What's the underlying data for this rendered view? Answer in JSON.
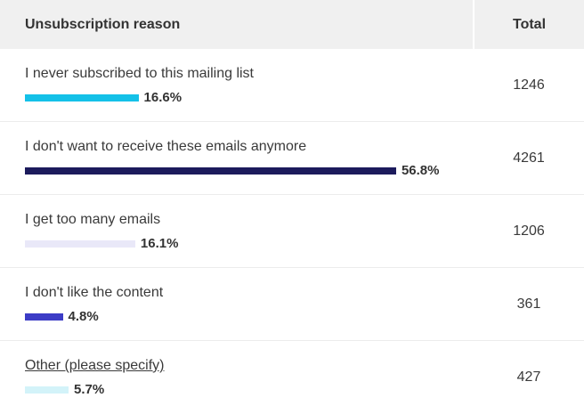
{
  "header": {
    "reason": "Unsubscription reason",
    "total": "Total"
  },
  "rows": [
    {
      "reason": "I never subscribed to this mailing list",
      "percent_label": "16.6%",
      "percent": 16.6,
      "total": "1246",
      "color": "#14c1e8",
      "link": false
    },
    {
      "reason": "I don't want to receive these emails anymore",
      "percent_label": "56.8%",
      "percent": 56.8,
      "total": "4261",
      "color": "#1c1b5c",
      "link": false
    },
    {
      "reason": "I get too many emails",
      "percent_label": "16.1%",
      "percent": 16.1,
      "total": "1206",
      "color": "#e9e8f8",
      "link": false
    },
    {
      "reason": "I don't like the content",
      "percent_label": "4.8%",
      "percent": 4.8,
      "total": "361",
      "color": "#3c3cc6",
      "link": false
    },
    {
      "reason": "Other (please specify)",
      "percent_label": "5.7%",
      "percent": 5.7,
      "total": "427",
      "color": "#d3f3f9",
      "link": true
    }
  ]
}
